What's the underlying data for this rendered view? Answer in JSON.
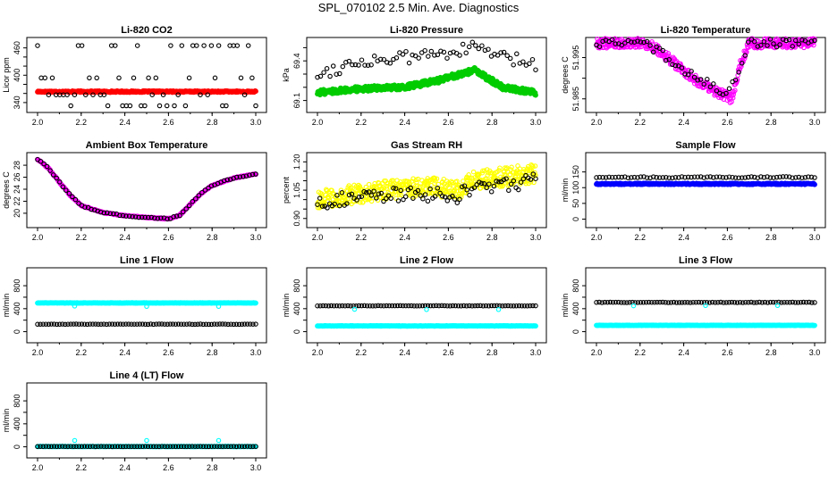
{
  "figure_title": "SPL_070102  2.5 Min. Ave. Diagnostics",
  "colors": {
    "black": "#000000",
    "red": "#ff0000",
    "green": "#00cc00",
    "magenta": "#ff00ff",
    "yellow": "#ffff00",
    "blue": "#0000ff",
    "cyan": "#00ffff"
  },
  "chart_data": [
    {
      "id": "co2",
      "type": "scatter",
      "title": "Li-820 CO2",
      "ylabel": "Licor ppm",
      "xlim": [
        2.0,
        3.0
      ],
      "ylim": [
        330,
        475
      ],
      "xticks": [
        "2.0",
        "2.2",
        "2.4",
        "2.6",
        "2.8",
        "3.0"
      ],
      "yticks": [
        {
          "v": 340,
          "t": "340"
        },
        {
          "v": 360,
          "t": "360"
        },
        {
          "v": 380,
          "t": "380"
        },
        {
          "v": 400,
          "t": "400"
        },
        {
          "v": 420,
          "t": "420"
        },
        {
          "v": 440,
          "t": "440"
        },
        {
          "v": 460,
          "t": "460"
        }
      ],
      "ytick_labels_shown": [
        "340",
        "400",
        "460"
      ],
      "series": [
        {
          "name": "CO2 ppm",
          "color": "red",
          "fill": true,
          "gen": "flat",
          "value": 364,
          "noise": 1.5,
          "n": 400
        },
        {
          "name": "outliers",
          "color": "black",
          "fill": false,
          "gen": "levels",
          "levels": [
            465,
            394,
            357,
            333
          ],
          "n": 60
        }
      ]
    },
    {
      "id": "pressure",
      "type": "scatter",
      "title": "Li-820 Pressure",
      "ylabel": "kPa",
      "xlim": [
        2.0,
        3.0
      ],
      "ylim": [
        69.05,
        69.55
      ],
      "xticks": [
        "2.0",
        "2.2",
        "2.4",
        "2.6",
        "2.8",
        "3.0"
      ],
      "yticks": [
        {
          "v": 69.1,
          "t": "69.1"
        },
        {
          "v": 69.2,
          "t": "69.2"
        },
        {
          "v": 69.3,
          "t": "69.3"
        },
        {
          "v": 69.4,
          "t": "69.4"
        },
        {
          "v": 69.5,
          "t": "69.5"
        }
      ],
      "ytick_labels_shown": [
        "69.1",
        "69.4"
      ],
      "series": [
        {
          "name": "pressure",
          "color": "green",
          "fill": true,
          "gen": "curve",
          "points": [
            [
              2.0,
              69.16
            ],
            [
              2.2,
              69.19
            ],
            [
              2.4,
              69.2
            ],
            [
              2.55,
              69.25
            ],
            [
              2.72,
              69.33
            ],
            [
              2.85,
              69.2
            ],
            [
              3.0,
              69.16
            ]
          ],
          "noise": 0.02,
          "n": 500
        },
        {
          "name": "pressure-raw",
          "color": "black",
          "fill": false,
          "gen": "curve",
          "points": [
            [
              2.0,
              69.3
            ],
            [
              2.2,
              69.4
            ],
            [
              2.4,
              69.42
            ],
            [
              2.6,
              69.47
            ],
            [
              2.75,
              69.5
            ],
            [
              2.85,
              69.42
            ],
            [
              3.0,
              69.38
            ]
          ],
          "noise": 0.05,
          "n": 70
        }
      ]
    },
    {
      "id": "temp",
      "type": "scatter",
      "title": "Li-820 Temperature",
      "ylabel": "degrees C",
      "xlim": [
        2.0,
        3.0
      ],
      "ylim": [
        51.983,
        51.999
      ],
      "xticks": [
        "2.0",
        "2.2",
        "2.4",
        "2.6",
        "2.8",
        "3.0"
      ],
      "yticks": [
        {
          "v": 51.985,
          "t": "51.985"
        },
        {
          "v": 51.99,
          "t": "51.990"
        },
        {
          "v": 51.995,
          "t": "51.995"
        }
      ],
      "ytick_labels_shown": [
        "51.985",
        "51.995"
      ],
      "series": [
        {
          "name": "temp",
          "color": "magenta",
          "fill": false,
          "gen": "curve",
          "points": [
            [
              2.0,
              51.9985
            ],
            [
              2.22,
              51.9985
            ],
            [
              2.28,
              51.997
            ],
            [
              2.35,
              51.994
            ],
            [
              2.42,
              51.991
            ],
            [
              2.5,
              51.988
            ],
            [
              2.58,
              51.986
            ],
            [
              2.62,
              51.985
            ],
            [
              2.66,
              51.9935
            ],
            [
              2.7,
              51.9985
            ],
            [
              3.0,
              51.9985
            ]
          ],
          "noise": 0.0012,
          "n": 450
        },
        {
          "name": "temp-raw",
          "color": "black",
          "fill": false,
          "gen": "curve",
          "points": [
            [
              2.0,
              51.9985
            ],
            [
              2.22,
              51.9985
            ],
            [
              2.3,
              51.996
            ],
            [
              2.4,
              51.992
            ],
            [
              2.5,
              51.989
            ],
            [
              2.6,
              51.986
            ],
            [
              2.65,
              51.992
            ],
            [
              2.7,
              51.9985
            ],
            [
              3.0,
              51.9985
            ]
          ],
          "noise": 0.001,
          "n": 70
        }
      ]
    },
    {
      "id": "ambient",
      "type": "scatter",
      "title": "Ambient Box Temperature",
      "ylabel": "degrees C",
      "xlim": [
        2.0,
        3.0
      ],
      "ylim": [
        18.5,
        29.5
      ],
      "xticks": [
        "2.0",
        "2.2",
        "2.4",
        "2.6",
        "2.8",
        "3.0"
      ],
      "yticks": [
        {
          "v": 20,
          "t": "20"
        },
        {
          "v": 22,
          "t": "22"
        },
        {
          "v": 24,
          "t": "24"
        },
        {
          "v": 26,
          "t": "26"
        },
        {
          "v": 28,
          "t": "28"
        }
      ],
      "ytick_labels_shown": [
        "20",
        "22",
        "24",
        "26",
        "28"
      ],
      "series": [
        {
          "name": "ambient",
          "color": "magenta",
          "fill": true,
          "gen": "curve",
          "points": [
            [
              2.0,
              29.0
            ],
            [
              2.05,
              27.5
            ],
            [
              2.1,
              25.2
            ],
            [
              2.15,
              23.0
            ],
            [
              2.2,
              21.3
            ],
            [
              2.3,
              20.1
            ],
            [
              2.4,
              19.6
            ],
            [
              2.5,
              19.3
            ],
            [
              2.6,
              19.1
            ],
            [
              2.65,
              19.6
            ],
            [
              2.7,
              21.5
            ],
            [
              2.75,
              23.3
            ],
            [
              2.8,
              24.6
            ],
            [
              2.9,
              25.9
            ],
            [
              3.0,
              26.5
            ]
          ],
          "noise": 0.08,
          "n": 300
        },
        {
          "name": "ambient-raw",
          "color": "black",
          "fill": false,
          "gen": "curve",
          "points": [
            [
              2.0,
              29.0
            ],
            [
              2.05,
              27.5
            ],
            [
              2.1,
              25.2
            ],
            [
              2.15,
              23.0
            ],
            [
              2.2,
              21.3
            ],
            [
              2.3,
              20.1
            ],
            [
              2.4,
              19.6
            ],
            [
              2.5,
              19.3
            ],
            [
              2.6,
              19.1
            ],
            [
              2.65,
              19.6
            ],
            [
              2.7,
              21.5
            ],
            [
              2.75,
              23.3
            ],
            [
              2.8,
              24.6
            ],
            [
              2.9,
              25.9
            ],
            [
              3.0,
              26.5
            ]
          ],
          "noise": 0.1,
          "n": 70
        }
      ]
    },
    {
      "id": "rh",
      "type": "scatter",
      "title": "Gas Stream RH",
      "ylabel": "percent",
      "xlim": [
        2.0,
        3.0
      ],
      "ylim": [
        0.88,
        1.23
      ],
      "xticks": [
        "2.0",
        "2.2",
        "2.4",
        "2.6",
        "2.8",
        "3.0"
      ],
      "yticks": [
        {
          "v": 0.9,
          "t": "0.90"
        },
        {
          "v": 0.95,
          "t": "0.95"
        },
        {
          "v": 1.0,
          "t": "1.00"
        },
        {
          "v": 1.05,
          "t": "1.05"
        },
        {
          "v": 1.1,
          "t": "1.10"
        },
        {
          "v": 1.15,
          "t": "1.15"
        },
        {
          "v": 1.2,
          "t": "1.20"
        }
      ],
      "ytick_labels_shown": [
        "0.90",
        "1.05",
        "1.20"
      ],
      "series": [
        {
          "name": "rh",
          "color": "yellow",
          "fill": false,
          "gen": "curve",
          "points": [
            [
              2.0,
              1.0
            ],
            [
              2.3,
              1.05
            ],
            [
              2.5,
              1.07
            ],
            [
              2.65,
              1.05
            ],
            [
              2.7,
              1.1
            ],
            [
              3.0,
              1.14
            ]
          ],
          "noise": 0.05,
          "n": 500
        },
        {
          "name": "rh-raw",
          "color": "black",
          "fill": false,
          "gen": "curve",
          "points": [
            [
              2.0,
              0.99
            ],
            [
              2.3,
              1.02
            ],
            [
              2.5,
              1.03
            ],
            [
              2.65,
              1.02
            ],
            [
              2.7,
              1.06
            ],
            [
              3.0,
              1.1
            ]
          ],
          "noise": 0.04,
          "n": 90
        }
      ]
    },
    {
      "id": "sample",
      "type": "scatter",
      "title": "Sample Flow",
      "ylabel": "ml/min",
      "xlim": [
        2.0,
        3.0
      ],
      "ylim": [
        -10,
        200
      ],
      "xticks": [
        "2.0",
        "2.2",
        "2.4",
        "2.6",
        "2.8",
        "3.0"
      ],
      "yticks": [
        {
          "v": 0,
          "t": "0"
        },
        {
          "v": 50,
          "t": "50"
        },
        {
          "v": 100,
          "t": "100"
        },
        {
          "v": 150,
          "t": "150"
        }
      ],
      "ytick_labels_shown": [
        "0",
        "50",
        "100",
        "150"
      ],
      "series": [
        {
          "name": "sample",
          "color": "blue",
          "fill": true,
          "gen": "flat",
          "value": 112,
          "noise": 2,
          "n": 400
        },
        {
          "name": "sample-raw",
          "color": "black",
          "fill": false,
          "gen": "flat",
          "value": 133,
          "noise": 2,
          "n": 70
        }
      ]
    },
    {
      "id": "line1",
      "type": "scatter",
      "title": "Line 1 Flow",
      "ylabel": "ml/min",
      "xlim": [
        2.0,
        3.0
      ],
      "ylim": [
        -100,
        1050
      ],
      "xticks": [
        "2.0",
        "2.2",
        "2.4",
        "2.6",
        "2.8",
        "3.0"
      ],
      "yticks": [
        {
          "v": 0,
          "t": "0"
        },
        {
          "v": 200,
          "t": "200"
        },
        {
          "v": 400,
          "t": "400"
        },
        {
          "v": 600,
          "t": "600"
        },
        {
          "v": 800,
          "t": "800"
        }
      ],
      "ytick_labels_shown": [
        "0",
        "400",
        "800"
      ],
      "series": [
        {
          "name": "line1-cyan",
          "color": "cyan",
          "fill": true,
          "gen": "flat",
          "value": 500,
          "noise": 3,
          "n": 300
        },
        {
          "name": "line1-black",
          "color": "black",
          "fill": false,
          "gen": "flat",
          "value": 130,
          "noise": 3,
          "n": 80
        },
        {
          "name": "line1-spikes",
          "color": "cyan",
          "fill": false,
          "gen": "points",
          "points": [
            [
              2.17,
              445
            ],
            [
              2.5,
              440
            ],
            [
              2.83,
              440
            ]
          ]
        }
      ]
    },
    {
      "id": "line2",
      "type": "scatter",
      "title": "Line 2 Flow",
      "ylabel": "ml/min",
      "xlim": [
        2.0,
        3.0
      ],
      "ylim": [
        -100,
        1050
      ],
      "xticks": [
        "2.0",
        "2.2",
        "2.4",
        "2.6",
        "2.8",
        "3.0"
      ],
      "yticks": [
        {
          "v": 0,
          "t": "0"
        },
        {
          "v": 200,
          "t": "200"
        },
        {
          "v": 400,
          "t": "400"
        },
        {
          "v": 600,
          "t": "600"
        },
        {
          "v": 800,
          "t": "800"
        }
      ],
      "ytick_labels_shown": [
        "0",
        "400",
        "800"
      ],
      "series": [
        {
          "name": "line2-cyan",
          "color": "cyan",
          "fill": true,
          "gen": "flat",
          "value": 100,
          "noise": 3,
          "n": 300
        },
        {
          "name": "line2-black",
          "color": "black",
          "fill": false,
          "gen": "flat",
          "value": 450,
          "noise": 3,
          "n": 80
        },
        {
          "name": "line2-spikes",
          "color": "cyan",
          "fill": false,
          "gen": "points",
          "points": [
            [
              2.17,
              390
            ],
            [
              2.5,
              385
            ],
            [
              2.83,
              385
            ]
          ]
        }
      ]
    },
    {
      "id": "line3",
      "type": "scatter",
      "title": "Line 3 Flow",
      "ylabel": "ml/min",
      "xlim": [
        2.0,
        3.0
      ],
      "ylim": [
        -100,
        1050
      ],
      "xticks": [
        "2.0",
        "2.2",
        "2.4",
        "2.6",
        "2.8",
        "3.0"
      ],
      "yticks": [
        {
          "v": 0,
          "t": "0"
        },
        {
          "v": 200,
          "t": "200"
        },
        {
          "v": 400,
          "t": "400"
        },
        {
          "v": 600,
          "t": "600"
        },
        {
          "v": 800,
          "t": "800"
        }
      ],
      "ytick_labels_shown": [
        "0",
        "400",
        "800"
      ],
      "series": [
        {
          "name": "line3-cyan",
          "color": "cyan",
          "fill": true,
          "gen": "flat",
          "value": 110,
          "noise": 3,
          "n": 300
        },
        {
          "name": "line3-black",
          "color": "black",
          "fill": false,
          "gen": "flat",
          "value": 510,
          "noise": 4,
          "n": 80
        },
        {
          "name": "line3-spikes",
          "color": "cyan",
          "fill": false,
          "gen": "points",
          "points": [
            [
              2.17,
              450
            ],
            [
              2.5,
              455
            ],
            [
              2.83,
              455
            ]
          ]
        }
      ]
    },
    {
      "id": "line4",
      "type": "scatter",
      "title": "Line 4 (LT) Flow",
      "ylabel": "ml/min",
      "xlim": [
        2.0,
        3.0
      ],
      "ylim": [
        -100,
        1050
      ],
      "xticks": [
        "2.0",
        "2.2",
        "2.4",
        "2.6",
        "2.8",
        "3.0"
      ],
      "yticks": [
        {
          "v": 0,
          "t": "0"
        },
        {
          "v": 200,
          "t": "200"
        },
        {
          "v": 400,
          "t": "400"
        },
        {
          "v": 600,
          "t": "600"
        },
        {
          "v": 800,
          "t": "800"
        }
      ],
      "ytick_labels_shown": [
        "0",
        "400",
        "800"
      ],
      "series": [
        {
          "name": "line4-cyan",
          "color": "cyan",
          "fill": true,
          "gen": "flat",
          "value": 5,
          "noise": 2,
          "n": 300
        },
        {
          "name": "line4-black",
          "color": "black",
          "fill": false,
          "gen": "flat",
          "value": 5,
          "noise": 2,
          "n": 80
        },
        {
          "name": "line4-spikes",
          "color": "cyan",
          "fill": false,
          "gen": "points",
          "points": [
            [
              2.17,
              110
            ],
            [
              2.5,
              110
            ],
            [
              2.83,
              110
            ]
          ]
        }
      ]
    }
  ]
}
